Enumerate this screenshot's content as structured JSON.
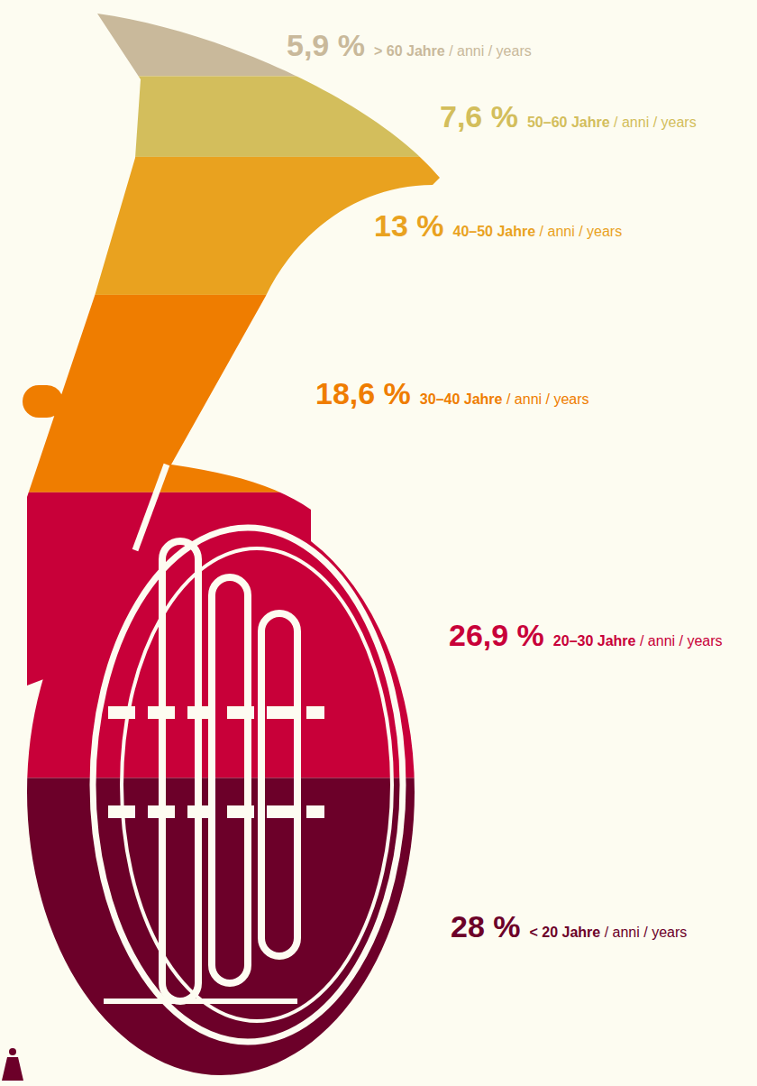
{
  "chart_data": {
    "type": "bar",
    "stacked": true,
    "categories": [
      "> 60 Jahre / anni / years",
      "50–60 Jahre / anni / years",
      "40–50 Jahre / anni / years",
      "30–40 Jahre / anni / years",
      "20–30 Jahre / anni / years",
      "< 20 Jahre / anni / years"
    ],
    "values": [
      5.9,
      7.6,
      13,
      18.6,
      26.9,
      28
    ],
    "value_labels": [
      "5,9 %",
      "7,6 %",
      "13 %",
      "18,6 %",
      "26,9 %",
      "28 %"
    ],
    "colors": [
      "#c9b99b",
      "#d3be5c",
      "#e9a21f",
      "#ef7d00",
      "#c80039",
      "#6c0029"
    ],
    "ylim": [
      0,
      100
    ],
    "data_labels": true,
    "tick_labels": false
  }
}
